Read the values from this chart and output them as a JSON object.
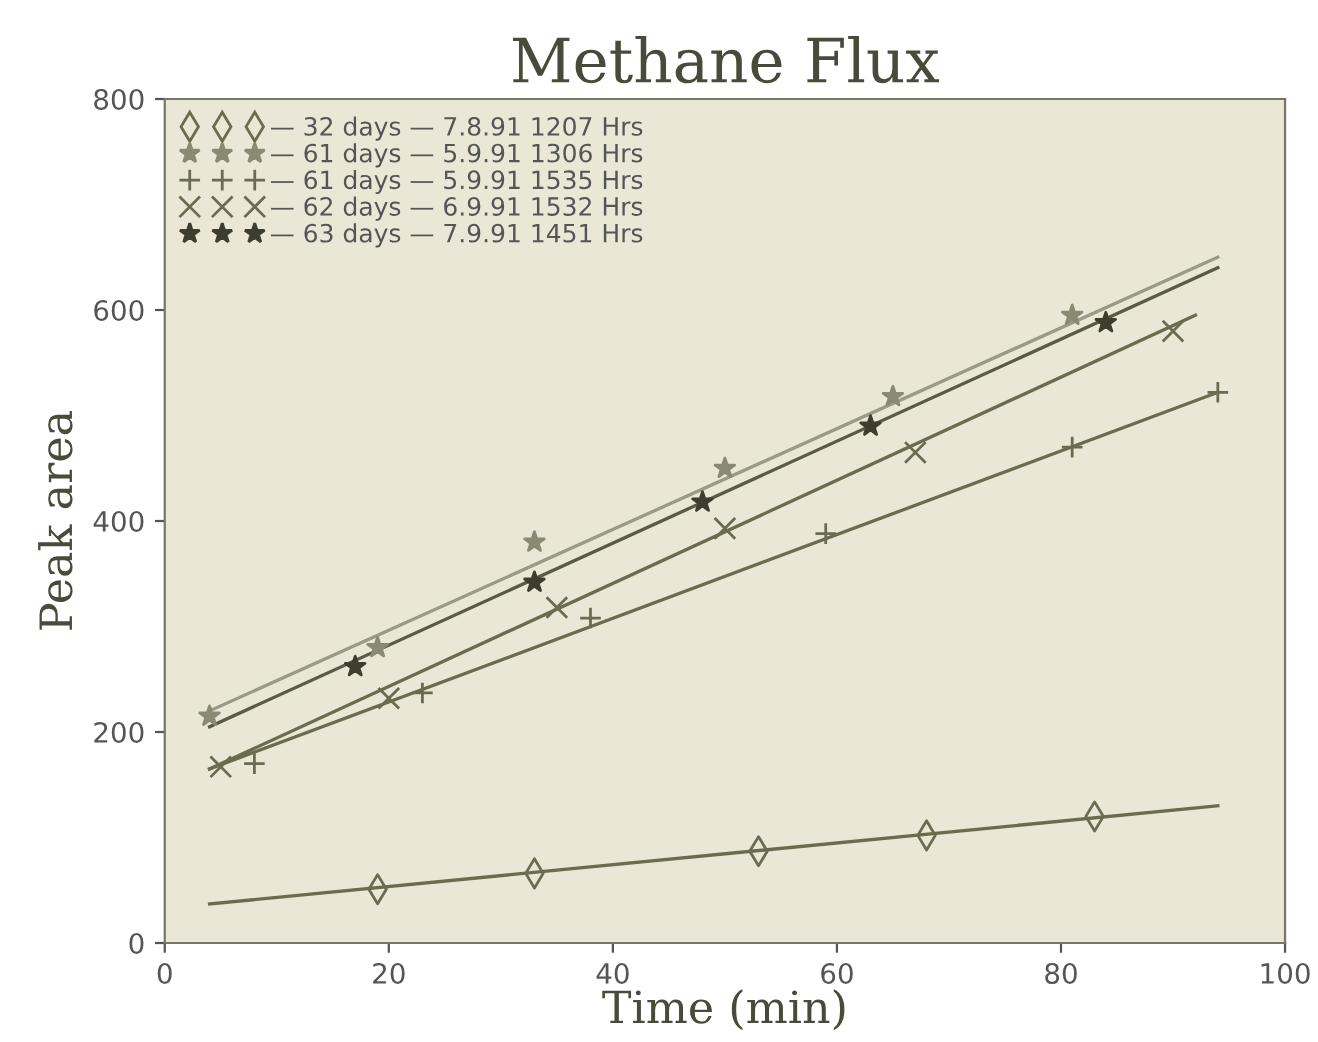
{
  "chart_data": {
    "type": "scatter",
    "title": "Methane Flux",
    "xlabel": "Time (min)",
    "ylabel": "Peak area",
    "xlim": [
      0,
      100
    ],
    "xticks": [
      0,
      20,
      40,
      60,
      80,
      100
    ],
    "ylim": [
      0,
      800
    ],
    "yticks": [
      0,
      200,
      400,
      600,
      800
    ],
    "grid": false,
    "legend": "top left",
    "series": [
      {
        "name": "— 32 days — 7.8.91 1207 Hrs",
        "marker": "diamond",
        "color": "#6b6b50",
        "x": [
          19,
          33,
          53,
          68,
          83
        ],
        "values": [
          51,
          66,
          87,
          102,
          120
        ]
      },
      {
        "name": "— 61 days — 5.9.91 1306 Hrs",
        "marker": "star",
        "color": "#8a8a74",
        "x": [
          4,
          19,
          33,
          50,
          65,
          81
        ],
        "values": [
          215,
          280,
          380,
          450,
          518,
          595
        ]
      },
      {
        "name": "— 61 days — 5.9.91 1535 Hrs",
        "marker": "plus",
        "color": "#6b6b50",
        "x": [
          8,
          23,
          38,
          59,
          81,
          94
        ],
        "values": [
          170,
          237,
          308,
          388,
          470,
          522
        ]
      },
      {
        "name": "— 62 days — 6.9.91 1532 Hrs",
        "marker": "cross",
        "color": "#6b6b50",
        "x": [
          5,
          20,
          35,
          50,
          67,
          90
        ],
        "values": [
          167,
          232,
          318,
          393,
          465,
          580
        ]
      },
      {
        "name": "— 63 days — 7.9.91 1451 Hrs",
        "marker": "star",
        "color": "#3e3e30",
        "x": [
          17,
          33,
          48,
          63,
          84
        ],
        "values": [
          262,
          342,
          418,
          490,
          588
        ]
      },
      {
        "type": "line",
        "color": "#6b6b50",
        "x": [
          4,
          94
        ],
        "values": [
          37,
          130
        ]
      },
      {
        "type": "line",
        "color": "#9a9a88",
        "x": [
          4,
          94
        ],
        "values": [
          220,
          650
        ]
      },
      {
        "type": "line",
        "color": "#6b6b50",
        "x": [
          4,
          94
        ],
        "values": [
          165,
          522
        ]
      },
      {
        "type": "line",
        "color": "#6b6b50",
        "x": [
          4,
          92
        ],
        "values": [
          165,
          595
        ]
      },
      {
        "type": "line",
        "color": "#5a5a48",
        "x": [
          4,
          94
        ],
        "values": [
          205,
          640
        ]
      }
    ]
  }
}
